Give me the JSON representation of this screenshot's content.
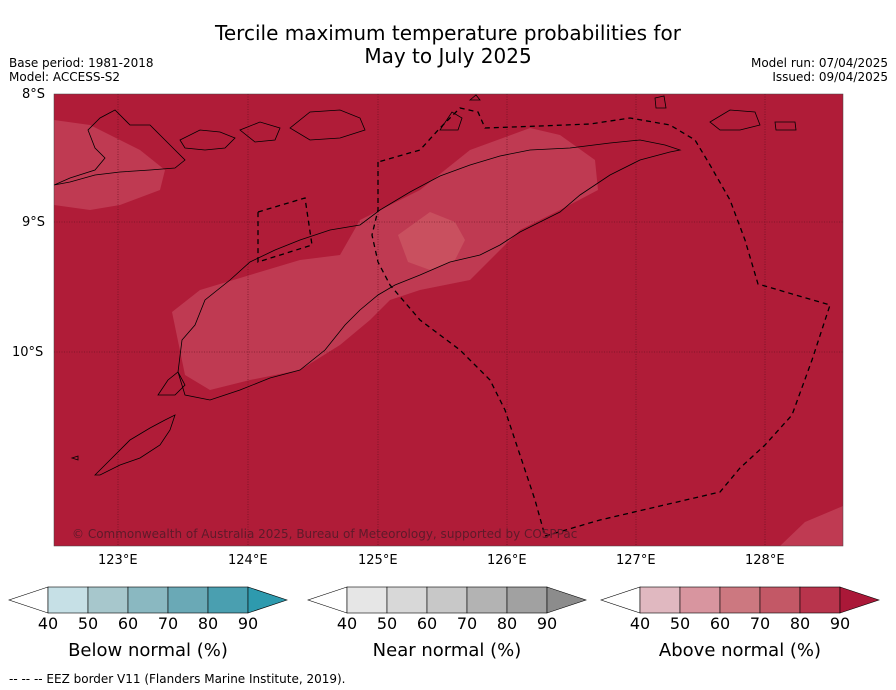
{
  "header": {
    "title_line1": "Tercile maximum temperature probabilities for",
    "title_line2": "May to July 2025",
    "base_period": "Base period: 1981-2018",
    "model": "Model: ACCESS-S2",
    "model_run": "Model run: 07/04/2025",
    "issued": "Issued: 09/04/2025"
  },
  "map": {
    "lat_labels": [
      "8°S",
      "9°S",
      "10°S"
    ],
    "lon_labels": [
      "123°E",
      "124°E",
      "125°E",
      "126°E",
      "127°E",
      "128°E"
    ],
    "background_color": "#b01c38",
    "light_band_color": "#bf3a52",
    "lighter_core_color": "#c9505f",
    "copyright": "© Commonwealth of Australia 2025, Bureau of Meteorology, supported by COSPPac"
  },
  "legends": [
    {
      "caption": "Below normal (%)",
      "ticks": [
        "40",
        "50",
        "60",
        "70",
        "80",
        "90"
      ],
      "colors": [
        "#ffffff",
        "#c6e0e6",
        "#a7c7cc",
        "#8ab8c1",
        "#6aa9b6",
        "#4a9fb0",
        "#2e9aae"
      ]
    },
    {
      "caption": "Near normal (%)",
      "ticks": [
        "40",
        "50",
        "60",
        "70",
        "80",
        "90"
      ],
      "colors": [
        "#ffffff",
        "#e6e6e6",
        "#d8d8d8",
        "#c8c8c8",
        "#b3b3b3",
        "#a1a1a1",
        "#8c8c8c"
      ]
    },
    {
      "caption": "Above normal (%)",
      "ticks": [
        "40",
        "50",
        "60",
        "70",
        "80",
        "90"
      ],
      "colors": [
        "#ffffff",
        "#e0b8c0",
        "#d8959f",
        "#cc7880",
        "#c35866",
        "#b8344c",
        "#aa1838"
      ]
    }
  ],
  "footnote": "--  --  -- EEZ border V11 (Flanders Marine Institute, 2019)."
}
